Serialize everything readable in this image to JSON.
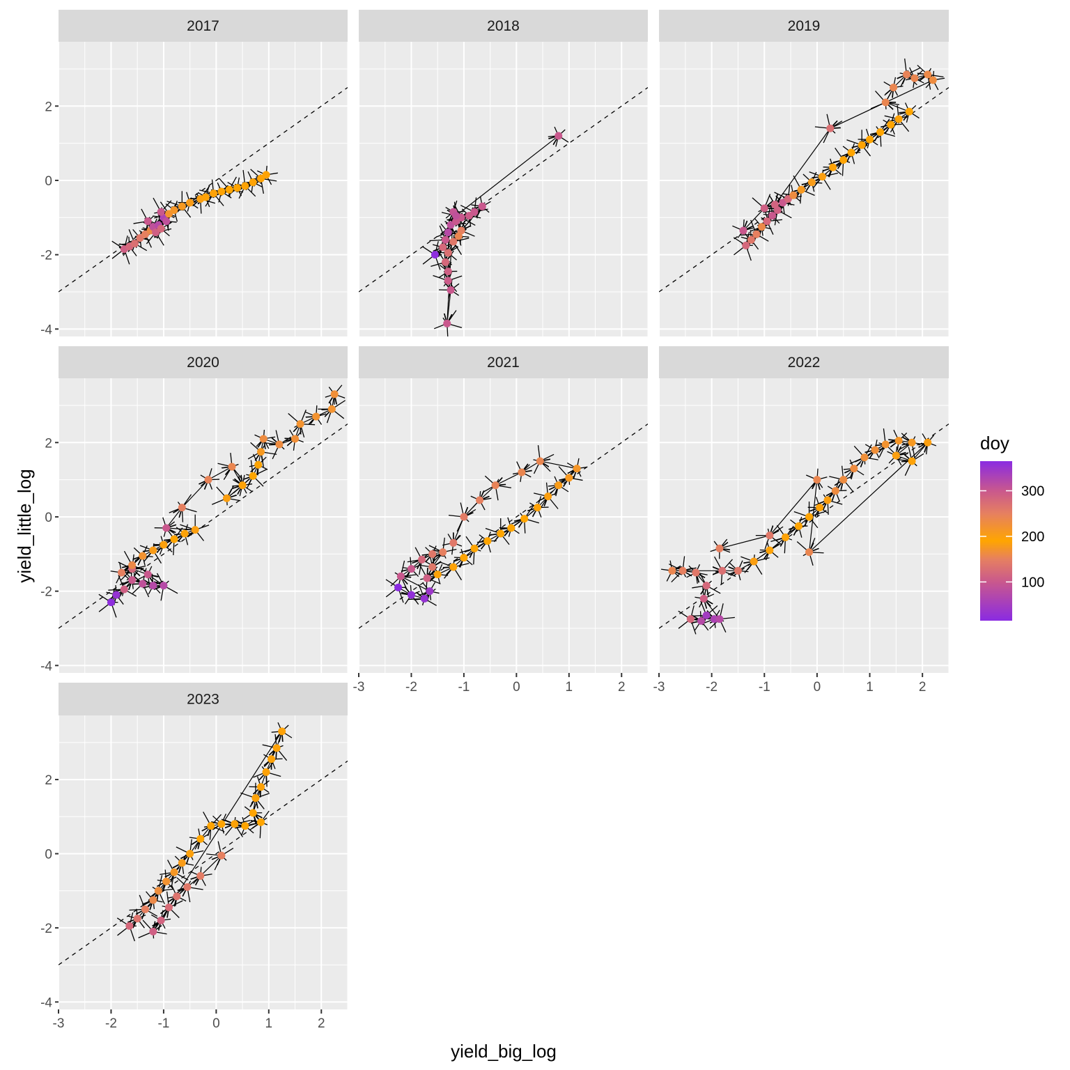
{
  "chart_data": {
    "type": "scatter",
    "subtype": "faceted trajectory scatter with arrows",
    "xlabel": "yield_big_log",
    "ylabel": "yield_little_log",
    "xlim": [
      -3.0,
      2.5
    ],
    "ylim": [
      -4.2,
      3.73
    ],
    "x_ticks": [
      -3,
      -2,
      -1,
      0,
      1,
      2
    ],
    "y_ticks": [
      -4,
      -2,
      0,
      2
    ],
    "reference_line": {
      "slope": 1,
      "intercept": 0,
      "style": "dashed"
    },
    "grid": true,
    "legend": {
      "title": "doy",
      "placement": "right",
      "type": "colorbar",
      "range": [
        15,
        365
      ],
      "ticks": [
        100,
        200,
        300
      ],
      "colors": [
        {
          "value": 15,
          "color": "#8a2be2"
        },
        {
          "value": 100,
          "color": "#c9588d"
        },
        {
          "value": 150,
          "color": "#e68060"
        },
        {
          "value": 190,
          "color": "#ffa500"
        },
        {
          "value": 250,
          "color": "#e68060"
        },
        {
          "value": 300,
          "color": "#c9588d"
        },
        {
          "value": 365,
          "color": "#8a2be2"
        }
      ]
    },
    "panels": [
      {
        "label": "2017",
        "points": [
          [
            -1.75,
            -1.85,
            110
          ],
          [
            -1.65,
            -1.78,
            120
          ],
          [
            -1.55,
            -1.7,
            130
          ],
          [
            -1.45,
            -1.55,
            140
          ],
          [
            -1.35,
            -1.45,
            150
          ],
          [
            -1.25,
            -1.35,
            160
          ],
          [
            -1.3,
            -1.1,
            300
          ],
          [
            -1.2,
            -1.25,
            310
          ],
          [
            -1.1,
            -1.2,
            320
          ],
          [
            -1.0,
            -1.0,
            330
          ],
          [
            -1.05,
            -0.85,
            300
          ],
          [
            -0.95,
            -1.1,
            310
          ],
          [
            -1.15,
            -1.4,
            290
          ],
          [
            -1.05,
            -1.3,
            280
          ],
          [
            -0.9,
            -0.9,
            220
          ],
          [
            -0.8,
            -0.8,
            215
          ],
          [
            -0.65,
            -0.7,
            210
          ],
          [
            -0.5,
            -0.6,
            205
          ],
          [
            -0.3,
            -0.5,
            200
          ],
          [
            -0.2,
            -0.45,
            195
          ],
          [
            -0.05,
            -0.35,
            195
          ],
          [
            0.1,
            -0.3,
            192
          ],
          [
            0.25,
            -0.25,
            190
          ],
          [
            0.4,
            -0.2,
            190
          ],
          [
            0.55,
            -0.15,
            188
          ],
          [
            0.7,
            -0.05,
            188
          ],
          [
            0.85,
            0.05,
            188
          ],
          [
            0.95,
            0.15,
            188
          ]
        ]
      },
      {
        "label": "2018",
        "points": [
          [
            -1.55,
            -2.0,
            20
          ],
          [
            -1.4,
            -1.8,
            280
          ],
          [
            -1.35,
            -1.6,
            300
          ],
          [
            -1.3,
            -1.4,
            320
          ],
          [
            -1.25,
            -1.2,
            310
          ],
          [
            -1.15,
            -1.1,
            300
          ],
          [
            -1.05,
            -1.0,
            300
          ],
          [
            -0.9,
            -0.95,
            295
          ],
          [
            -0.8,
            -0.85,
            300
          ],
          [
            -0.65,
            -0.7,
            300
          ],
          [
            -1.05,
            -1.35,
            250
          ],
          [
            -1.1,
            -1.5,
            240
          ],
          [
            -1.2,
            -1.65,
            260
          ],
          [
            -1.3,
            -1.95,
            270
          ],
          [
            -1.35,
            -2.2,
            280
          ],
          [
            -1.3,
            -2.45,
            290
          ],
          [
            -1.3,
            -2.7,
            295
          ],
          [
            -1.25,
            -2.95,
            300
          ],
          [
            -1.32,
            -3.85,
            300
          ],
          [
            -1.2,
            -0.85,
            305
          ],
          [
            -1.15,
            -0.95,
            310
          ],
          [
            0.8,
            1.2,
            300
          ]
        ],
        "arrows_to": [
          [
            0.8,
            1.2
          ],
          [
            -1.32,
            -3.85
          ]
        ]
      },
      {
        "label": "2019",
        "points": [
          [
            -1.35,
            -1.75,
            120
          ],
          [
            -1.25,
            -1.6,
            140
          ],
          [
            -1.15,
            -1.45,
            150
          ],
          [
            -1.05,
            -1.25,
            160
          ],
          [
            -0.95,
            -1.1,
            280
          ],
          [
            -0.85,
            -0.95,
            300
          ],
          [
            -0.75,
            -0.8,
            290
          ],
          [
            -0.65,
            -0.6,
            300
          ],
          [
            -0.55,
            -0.5,
            280
          ],
          [
            -0.45,
            -0.4,
            230
          ],
          [
            -0.3,
            -0.25,
            210
          ],
          [
            -0.1,
            -0.05,
            205
          ],
          [
            0.1,
            0.1,
            200
          ],
          [
            0.3,
            0.35,
            195
          ],
          [
            0.5,
            0.55,
            192
          ],
          [
            0.65,
            0.75,
            190
          ],
          [
            0.85,
            0.95,
            188
          ],
          [
            1.0,
            1.1,
            190
          ],
          [
            1.2,
            1.3,
            190
          ],
          [
            1.4,
            1.5,
            192
          ],
          [
            1.55,
            1.65,
            195
          ],
          [
            1.75,
            1.85,
            190
          ],
          [
            1.3,
            2.1,
            240
          ],
          [
            1.45,
            2.5,
            240
          ],
          [
            1.7,
            2.85,
            245
          ],
          [
            1.85,
            2.75,
            240
          ],
          [
            2.1,
            2.85,
            235
          ],
          [
            2.2,
            2.7,
            230
          ],
          [
            0.25,
            1.4,
            270
          ],
          [
            -0.8,
            -0.65,
            285
          ],
          [
            -1.0,
            -0.75,
            290
          ],
          [
            -1.4,
            -1.35,
            300
          ]
        ]
      },
      {
        "label": "2020",
        "points": [
          [
            -2.0,
            -2.3,
            20
          ],
          [
            -1.9,
            -2.1,
            30
          ],
          [
            -1.75,
            -1.95,
            290
          ],
          [
            -1.6,
            -1.7,
            300
          ],
          [
            -1.4,
            -1.8,
            310
          ],
          [
            -1.2,
            -1.85,
            320
          ],
          [
            -1.0,
            -1.85,
            320
          ],
          [
            -1.3,
            -1.55,
            300
          ],
          [
            -1.6,
            -1.4,
            280
          ],
          [
            -1.8,
            -1.5,
            150
          ],
          [
            -1.6,
            -1.3,
            160
          ],
          [
            -1.4,
            -1.05,
            170
          ],
          [
            -1.2,
            -0.9,
            180
          ],
          [
            -1.0,
            -0.75,
            185
          ],
          [
            -0.8,
            -0.6,
            190
          ],
          [
            -0.6,
            -0.45,
            195
          ],
          [
            -0.4,
            -0.35,
            200
          ],
          [
            -0.95,
            -0.3,
            300
          ],
          [
            -0.65,
            0.25,
            250
          ],
          [
            -0.15,
            1.0,
            245
          ],
          [
            0.3,
            1.35,
            240
          ],
          [
            0.5,
            0.85,
            240
          ],
          [
            0.2,
            0.5,
            200
          ],
          [
            0.5,
            0.85,
            195
          ],
          [
            0.7,
            1.1,
            190
          ],
          [
            0.8,
            1.4,
            192
          ],
          [
            0.85,
            1.75,
            210
          ],
          [
            0.9,
            2.1,
            230
          ],
          [
            1.2,
            1.95,
            230
          ],
          [
            1.5,
            2.1,
            225
          ],
          [
            1.6,
            2.5,
            220
          ],
          [
            1.9,
            2.7,
            220
          ],
          [
            2.2,
            2.9,
            220
          ],
          [
            2.25,
            3.3,
            225
          ]
        ]
      },
      {
        "label": "2021",
        "points": [
          [
            -2.25,
            -1.9,
            15
          ],
          [
            -2.0,
            -2.1,
            25
          ],
          [
            -1.75,
            -2.2,
            30
          ],
          [
            -1.65,
            -2.0,
            40
          ],
          [
            -2.2,
            -1.6,
            300
          ],
          [
            -2.0,
            -1.4,
            300
          ],
          [
            -1.8,
            -1.15,
            280
          ],
          [
            -1.6,
            -1.0,
            260
          ],
          [
            -1.4,
            -0.95,
            250
          ],
          [
            -1.6,
            -1.35,
            260
          ],
          [
            -1.7,
            -1.65,
            290
          ],
          [
            -1.5,
            -1.55,
            195
          ],
          [
            -1.2,
            -1.35,
            195
          ],
          [
            -1.0,
            -1.1,
            192
          ],
          [
            -0.8,
            -0.85,
            190
          ],
          [
            -0.55,
            -0.65,
            190
          ],
          [
            -0.3,
            -0.45,
            190
          ],
          [
            -0.1,
            -0.3,
            190
          ],
          [
            0.15,
            -0.05,
            190
          ],
          [
            0.4,
            0.25,
            195
          ],
          [
            0.6,
            0.55,
            200
          ],
          [
            0.8,
            0.85,
            205
          ],
          [
            1.0,
            1.05,
            210
          ],
          [
            1.15,
            1.3,
            215
          ],
          [
            0.45,
            1.5,
            240
          ],
          [
            0.1,
            1.2,
            240
          ],
          [
            -0.4,
            0.85,
            245
          ],
          [
            -0.7,
            0.45,
            250
          ],
          [
            -1.0,
            0.0,
            255
          ],
          [
            -1.2,
            -0.7,
            260
          ]
        ]
      },
      {
        "label": "2022",
        "points": [
          [
            -2.4,
            -2.75,
            280
          ],
          [
            -2.2,
            -2.8,
            320
          ],
          [
            -2.1,
            -2.65,
            340
          ],
          [
            -1.95,
            -2.75,
            330
          ],
          [
            -1.85,
            -2.75,
            320
          ],
          [
            -2.15,
            -2.2,
            290
          ],
          [
            -2.1,
            -1.85,
            280
          ],
          [
            -2.3,
            -1.5,
            260
          ],
          [
            -2.55,
            -1.45,
            250
          ],
          [
            -2.75,
            -1.45,
            240
          ],
          [
            -1.8,
            -1.45,
            270
          ],
          [
            -1.5,
            -1.45,
            260
          ],
          [
            -1.2,
            -1.2,
            200
          ],
          [
            -0.9,
            -0.9,
            195
          ],
          [
            -0.6,
            -0.55,
            195
          ],
          [
            -0.35,
            -0.25,
            192
          ],
          [
            -0.15,
            0.0,
            192
          ],
          [
            0.05,
            0.25,
            195
          ],
          [
            0.2,
            0.45,
            200
          ],
          [
            0.35,
            0.7,
            230
          ],
          [
            0.5,
            1.0,
            230
          ],
          [
            0.7,
            1.3,
            230
          ],
          [
            0.9,
            1.6,
            225
          ],
          [
            1.1,
            1.8,
            225
          ],
          [
            1.3,
            1.95,
            220
          ],
          [
            1.55,
            2.05,
            215
          ],
          [
            1.8,
            2.0,
            210
          ],
          [
            1.5,
            1.65,
            200
          ],
          [
            1.8,
            1.5,
            195
          ],
          [
            2.1,
            2.0,
            200
          ],
          [
            -0.15,
            -0.95,
            240
          ],
          [
            0.0,
            1.0,
            240
          ],
          [
            -0.9,
            -0.5,
            260
          ],
          [
            -1.85,
            -0.85,
            250
          ]
        ]
      },
      {
        "label": "2023",
        "points": [
          [
            -1.65,
            -1.95,
            120
          ],
          [
            -1.5,
            -1.75,
            135
          ],
          [
            -1.35,
            -1.5,
            150
          ],
          [
            -1.2,
            -1.25,
            160
          ],
          [
            -1.1,
            -1.0,
            165
          ],
          [
            -0.95,
            -0.75,
            170
          ],
          [
            -0.8,
            -0.5,
            175
          ],
          [
            -0.65,
            -0.25,
            180
          ],
          [
            -0.5,
            0.0,
            185
          ],
          [
            -0.3,
            0.4,
            190
          ],
          [
            -0.1,
            0.75,
            192
          ],
          [
            0.1,
            0.8,
            192
          ],
          [
            0.35,
            0.8,
            195
          ],
          [
            0.55,
            0.75,
            190
          ],
          [
            0.85,
            0.85,
            190
          ],
          [
            0.7,
            1.1,
            192
          ],
          [
            0.75,
            1.5,
            195
          ],
          [
            0.85,
            1.8,
            195
          ],
          [
            0.95,
            2.2,
            195
          ],
          [
            1.05,
            2.55,
            195
          ],
          [
            1.15,
            2.85,
            195
          ],
          [
            1.25,
            3.3,
            195
          ],
          [
            -1.2,
            -2.1,
            290
          ],
          [
            -1.05,
            -1.8,
            285
          ],
          [
            -0.9,
            -1.45,
            275
          ],
          [
            -0.75,
            -1.15,
            265
          ],
          [
            -0.55,
            -0.9,
            260
          ],
          [
            -0.3,
            -0.6,
            255
          ],
          [
            0.1,
            -0.05,
            250
          ]
        ]
      }
    ]
  }
}
